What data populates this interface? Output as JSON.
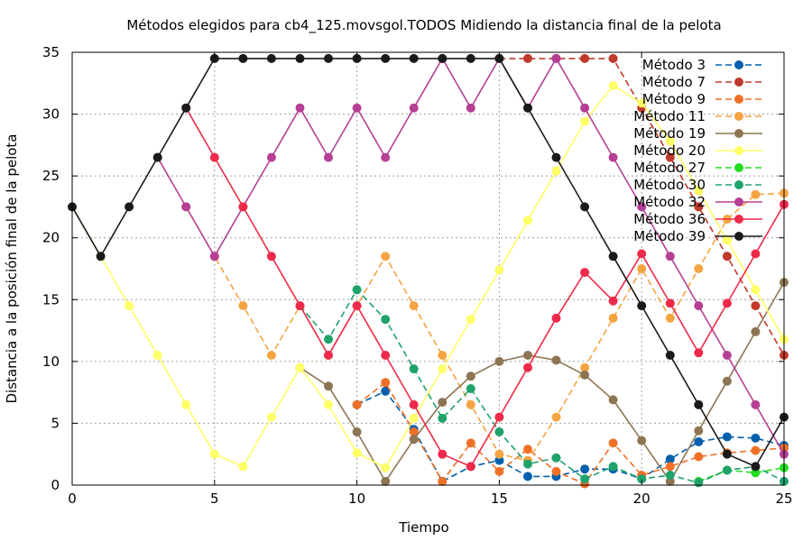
{
  "chart_data": {
    "type": "line",
    "title": "Métodos elegidos para cb4_125.movsgol.TODOS Midiendo la distancia final de la pelota",
    "xlabel": "Tiempo",
    "ylabel": "Distancia a la posición final de la pelota",
    "xlim": [
      0,
      25
    ],
    "ylim": [
      0,
      35
    ],
    "x_ticks": [
      "0",
      "5",
      "10",
      "15",
      "20",
      "25"
    ],
    "y_ticks": [
      "0",
      "5",
      "10",
      "15",
      "20",
      "25",
      "30",
      "35"
    ],
    "grid": true,
    "legend_position": "top-right",
    "series": [
      {
        "name": "Método 3",
        "color": "#0060ad",
        "dashed": true,
        "points": [
          [
            10,
            6.5
          ],
          [
            11,
            7.6
          ],
          [
            12,
            4.5
          ],
          [
            13,
            0.3
          ],
          [
            14,
            1.5
          ],
          [
            15,
            2.0
          ],
          [
            16,
            0.7
          ],
          [
            17,
            0.7
          ],
          [
            18,
            1.3
          ],
          [
            19,
            1.3
          ],
          [
            20,
            0.5
          ],
          [
            21,
            2.1
          ],
          [
            22,
            3.5
          ],
          [
            23,
            3.9
          ],
          [
            24,
            3.8
          ],
          [
            25,
            3.2
          ]
        ]
      },
      {
        "name": "Método 7",
        "color": "#c0392b",
        "dashed": true,
        "points": [
          [
            15,
            34.5
          ],
          [
            16,
            34.5
          ],
          [
            17,
            34.5
          ],
          [
            18,
            34.5
          ],
          [
            19,
            34.5
          ],
          [
            20,
            30.5
          ],
          [
            21,
            26.5
          ],
          [
            22,
            22.5
          ],
          [
            23,
            18.5
          ],
          [
            24,
            14.5
          ],
          [
            25,
            10.5
          ]
        ]
      },
      {
        "name": "Método 9",
        "color": "#f07028",
        "dashed": true,
        "points": [
          [
            10,
            6.5
          ],
          [
            11,
            8.3
          ],
          [
            12,
            4.3
          ],
          [
            13,
            0.3
          ],
          [
            14,
            3.4
          ],
          [
            15,
            1.1
          ],
          [
            16,
            2.9
          ],
          [
            17,
            1.1
          ],
          [
            18,
            0.1
          ],
          [
            19,
            3.4
          ],
          [
            20,
            0.8
          ],
          [
            21,
            1.5
          ],
          [
            22,
            2.3
          ],
          [
            23,
            2.6
          ],
          [
            24,
            2.8
          ],
          [
            25,
            3.0
          ]
        ]
      },
      {
        "name": "Método 11",
        "color": "#f5a442",
        "dashed": true,
        "points": [
          [
            4,
            22.5
          ],
          [
            5,
            18.5
          ],
          [
            6,
            14.5
          ],
          [
            7,
            10.5
          ],
          [
            8,
            14.5
          ],
          [
            9,
            10.5
          ],
          [
            10,
            14.5
          ],
          [
            11,
            18.5
          ],
          [
            12,
            14.5
          ],
          [
            13,
            10.5
          ],
          [
            14,
            6.5
          ],
          [
            15,
            2.5
          ],
          [
            16,
            2.0
          ],
          [
            17,
            5.5
          ],
          [
            18,
            9.5
          ],
          [
            19,
            13.5
          ],
          [
            20,
            17.5
          ],
          [
            21,
            13.5
          ],
          [
            22,
            17.5
          ],
          [
            23,
            21.5
          ],
          [
            24,
            23.5
          ],
          [
            25,
            23.6
          ]
        ]
      },
      {
        "name": "Método 19",
        "color": "#8d7553",
        "dashed": false,
        "points": [
          [
            8,
            9.5
          ],
          [
            9,
            8.0
          ],
          [
            10,
            4.3
          ],
          [
            11,
            0.3
          ],
          [
            12,
            3.7
          ],
          [
            13,
            6.7
          ],
          [
            14,
            8.8
          ],
          [
            15,
            10.0
          ],
          [
            16,
            10.5
          ],
          [
            17,
            10.1
          ],
          [
            18,
            8.9
          ],
          [
            19,
            6.9
          ],
          [
            20,
            3.6
          ],
          [
            21,
            0.3
          ],
          [
            22,
            4.4
          ],
          [
            23,
            8.4
          ],
          [
            24,
            12.4
          ],
          [
            25,
            16.4
          ]
        ]
      },
      {
        "name": "Método 20",
        "color": "#ffff66",
        "dashed": false,
        "points": [
          [
            0,
            22.5
          ],
          [
            1,
            18.5
          ],
          [
            2,
            14.5
          ],
          [
            3,
            10.5
          ],
          [
            4,
            6.5
          ],
          [
            5,
            2.5
          ],
          [
            6,
            1.5
          ],
          [
            7,
            5.5
          ],
          [
            8,
            9.5
          ],
          [
            9,
            6.5
          ],
          [
            10,
            2.6
          ],
          [
            11,
            1.4
          ],
          [
            12,
            5.4
          ],
          [
            13,
            9.4
          ],
          [
            14,
            13.4
          ],
          [
            15,
            17.4
          ],
          [
            16,
            21.4
          ],
          [
            17,
            25.4
          ],
          [
            18,
            29.4
          ],
          [
            19,
            32.3
          ],
          [
            20,
            30.9
          ],
          [
            21,
            27.8
          ],
          [
            22,
            23.8
          ],
          [
            23,
            19.8
          ],
          [
            24,
            15.8
          ],
          [
            25,
            11.8
          ]
        ]
      },
      {
        "name": "Método 27",
        "color": "#22dd22",
        "dashed": true,
        "points": [
          [
            22,
            0.3
          ],
          [
            23,
            1.2
          ],
          [
            24,
            1.0
          ],
          [
            25,
            1.4
          ]
        ]
      },
      {
        "name": "Método 30",
        "color": "#1fa36b",
        "dashed": true,
        "points": [
          [
            8,
            14.5
          ],
          [
            9,
            11.8
          ],
          [
            10,
            15.8
          ],
          [
            11,
            13.4
          ],
          [
            12,
            9.4
          ],
          [
            13,
            5.4
          ],
          [
            14,
            7.8
          ],
          [
            15,
            4.3
          ],
          [
            16,
            1.7
          ],
          [
            17,
            2.2
          ],
          [
            18,
            0.5
          ],
          [
            19,
            1.5
          ],
          [
            20,
            0.5
          ],
          [
            21,
            0.8
          ],
          [
            22,
            0.2
          ],
          [
            23,
            1.2
          ],
          [
            24,
            1.5
          ],
          [
            25,
            0.3
          ]
        ]
      },
      {
        "name": "Método 32",
        "color": "#b53f94",
        "dashed": false,
        "points": [
          [
            3,
            26.5
          ],
          [
            4,
            22.5
          ],
          [
            5,
            18.5
          ],
          [
            6,
            22.5
          ],
          [
            7,
            26.5
          ],
          [
            8,
            30.5
          ],
          [
            9,
            26.5
          ],
          [
            10,
            30.5
          ],
          [
            11,
            26.5
          ],
          [
            12,
            30.5
          ],
          [
            13,
            34.5
          ],
          [
            14,
            30.5
          ],
          [
            15,
            34.5
          ],
          [
            16,
            30.5
          ],
          [
            17,
            34.5
          ],
          [
            18,
            30.5
          ],
          [
            19,
            26.5
          ],
          [
            20,
            22.5
          ],
          [
            21,
            18.5
          ],
          [
            22,
            14.5
          ],
          [
            23,
            10.5
          ],
          [
            24,
            6.5
          ],
          [
            25,
            2.5
          ]
        ]
      },
      {
        "name": "Método 36",
        "color": "#ee2a4a",
        "dashed": false,
        "points": [
          [
            4,
            30.5
          ],
          [
            5,
            26.5
          ],
          [
            6,
            22.5
          ],
          [
            7,
            18.5
          ],
          [
            8,
            14.5
          ],
          [
            9,
            10.5
          ],
          [
            10,
            14.5
          ],
          [
            11,
            10.5
          ],
          [
            12,
            6.5
          ],
          [
            13,
            2.5
          ],
          [
            14,
            1.5
          ],
          [
            15,
            5.5
          ],
          [
            16,
            9.5
          ],
          [
            17,
            13.5
          ],
          [
            18,
            17.2
          ],
          [
            19,
            14.9
          ],
          [
            20,
            18.7
          ],
          [
            21,
            14.7
          ],
          [
            22,
            10.7
          ],
          [
            23,
            14.7
          ],
          [
            24,
            18.7
          ],
          [
            25,
            22.7
          ]
        ]
      },
      {
        "name": "Método 39",
        "color": "#1a1a1a",
        "dashed": false,
        "points": [
          [
            0,
            22.5
          ],
          [
            1,
            18.5
          ],
          [
            2,
            22.5
          ],
          [
            3,
            26.5
          ],
          [
            4,
            30.5
          ],
          [
            5,
            34.5
          ],
          [
            6,
            34.5
          ],
          [
            7,
            34.5
          ],
          [
            8,
            34.5
          ],
          [
            9,
            34.5
          ],
          [
            10,
            34.5
          ],
          [
            11,
            34.5
          ],
          [
            12,
            34.5
          ],
          [
            13,
            34.5
          ],
          [
            14,
            34.5
          ],
          [
            15,
            34.5
          ],
          [
            16,
            30.5
          ],
          [
            17,
            26.5
          ],
          [
            18,
            22.5
          ],
          [
            19,
            18.5
          ],
          [
            20,
            14.5
          ],
          [
            21,
            10.5
          ],
          [
            22,
            6.5
          ],
          [
            23,
            2.5
          ],
          [
            24,
            1.5
          ],
          [
            25,
            5.5
          ]
        ]
      }
    ]
  }
}
